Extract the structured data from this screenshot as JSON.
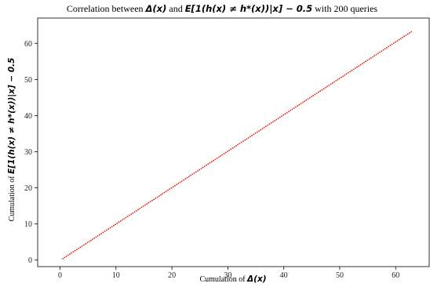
{
  "chart_data": {
    "type": "scatter",
    "title": {
      "prefix": "Correlation between ",
      "math1": "Δ(x)",
      "middle": " and ",
      "math2": "E[1(h(x) ≠ h*(x))|x] − 0.5",
      "suffix": " with 200 queries"
    },
    "xlabel": {
      "prefix": "Cumulation of ",
      "math": "Δ(x)"
    },
    "ylabel": {
      "prefix": "Cumulation of ",
      "math": "E[1(h(x) ≠ h*(x))|x] − 0.5"
    },
    "xlim": [
      -4,
      66
    ],
    "ylim": [
      -1.8,
      67
    ],
    "xticks": [
      0,
      10,
      20,
      30,
      40,
      50,
      60
    ],
    "yticks": [
      0,
      10,
      20,
      30,
      40,
      50,
      60
    ],
    "grid": false,
    "color": "#e8190b",
    "series": [
      {
        "n_points": 200,
        "x_start": 0.5,
        "x_end": 62.8,
        "y_start": 0.4,
        "y_end": 63.2
      }
    ]
  }
}
